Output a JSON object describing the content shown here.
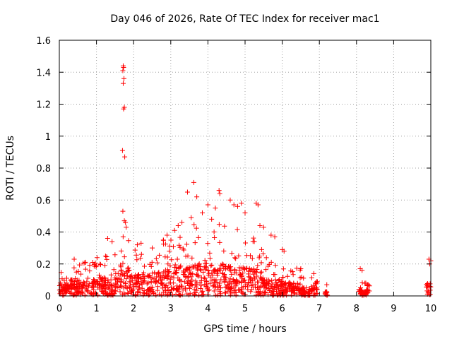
{
  "colors": {
    "series": "#ff0000",
    "axis": "#000000",
    "grid": "#a0a0a0",
    "background": "#ffffff"
  },
  "chart_data": {
    "type": "scatter",
    "title": "Day 046 of 2026, Rate Of TEC Index for receiver mac1",
    "xlabel": "GPS time / hours",
    "ylabel": "ROTI / TECUs",
    "xlim": [
      0,
      10
    ],
    "ylim": [
      0,
      1.6
    ],
    "xticks": [
      0,
      1,
      2,
      3,
      4,
      5,
      6,
      7,
      8,
      9,
      10
    ],
    "yticks": [
      0,
      0.2,
      0.4,
      0.6,
      0.8,
      1,
      1.2,
      1.4,
      1.6
    ],
    "xtick_labels": [
      "0",
      "1",
      "2",
      "3",
      "4",
      "5",
      "6",
      "7",
      "8",
      "9",
      "10"
    ],
    "ytick_labels": [
      "0",
      "0.2",
      "0.4",
      "0.6",
      "0.8",
      "1",
      "1.2",
      "1.4",
      "1.6"
    ],
    "grid": true,
    "marker": "+",
    "series": [
      {
        "name": "ROTI",
        "notable_points": {
          "x": [
            1.72,
            1.73,
            1.71,
            1.74,
            1.72,
            1.75,
            1.73,
            1.76,
            1.7,
            1.71,
            1.75,
            1.78,
            1.8,
            1.3,
            1.42,
            3.45,
            3.62,
            3.7,
            3.85,
            4.0,
            4.2,
            4.3,
            4.32,
            4.1,
            3.55,
            3.3,
            3.2,
            3.1,
            2.9,
            2.8,
            2.5,
            2.2,
            2.1,
            4.6,
            4.7,
            4.8,
            4.9,
            5.0,
            5.3,
            5.35,
            5.4,
            5.5,
            5.7,
            5.8,
            6.0,
            6.05,
            6.5,
            6.85,
            7.2,
            8.1,
            8.15,
            8.25,
            8.3,
            9.95,
            10.0,
            9.97,
            0.4,
            0.9,
            1.0
          ],
          "y": [
            1.44,
            1.43,
            1.41,
            1.36,
            1.33,
            1.18,
            1.17,
            0.87,
            0.91,
            0.53,
            0.47,
            0.46,
            0.43,
            0.36,
            0.34,
            0.65,
            0.71,
            0.62,
            0.52,
            0.57,
            0.55,
            0.66,
            0.64,
            0.48,
            0.49,
            0.46,
            0.44,
            0.41,
            0.38,
            0.35,
            0.3,
            0.33,
            0.32,
            0.6,
            0.57,
            0.56,
            0.58,
            0.52,
            0.58,
            0.57,
            0.44,
            0.43,
            0.38,
            0.37,
            0.29,
            0.28,
            0.17,
            0.14,
            0.07,
            0.17,
            0.16,
            0.08,
            0.07,
            0.23,
            0.22,
            0.2,
            0.23,
            0.21,
            0.19
          ]
        },
        "dense_segments": [
          {
            "x_range": [
              0.0,
              0.45
            ],
            "y_max": 0.19
          },
          {
            "x_range": [
              0.45,
              1.0
            ],
            "y_max": 0.22
          },
          {
            "x_range": [
              1.0,
              1.65
            ],
            "y_max": 0.26
          },
          {
            "x_range": [
              1.65,
              1.9
            ],
            "y_max": 0.4
          },
          {
            "x_range": [
              1.9,
              2.5
            ],
            "y_max": 0.3
          },
          {
            "x_range": [
              2.5,
              3.0
            ],
            "y_max": 0.35
          },
          {
            "x_range": [
              3.0,
              3.5
            ],
            "y_max": 0.4
          },
          {
            "x_range": [
              3.5,
              4.0
            ],
            "y_max": 0.45
          },
          {
            "x_range": [
              4.0,
              4.5
            ],
            "y_max": 0.45
          },
          {
            "x_range": [
              4.5,
              5.0
            ],
            "y_max": 0.42
          },
          {
            "x_range": [
              5.0,
              5.5
            ],
            "y_max": 0.38
          },
          {
            "x_range": [
              5.5,
              6.0
            ],
            "y_max": 0.25
          },
          {
            "x_range": [
              6.0,
              6.5
            ],
            "y_max": 0.18
          },
          {
            "x_range": [
              6.5,
              6.95
            ],
            "y_max": 0.12
          },
          {
            "x_range": [
              7.15,
              7.22
            ],
            "y_max": 0.06
          },
          {
            "x_range": [
              8.05,
              8.35
            ],
            "y_max": 0.09
          },
          {
            "x_range": [
              9.88,
              10.0
            ],
            "y_max": 0.18
          }
        ]
      }
    ]
  }
}
